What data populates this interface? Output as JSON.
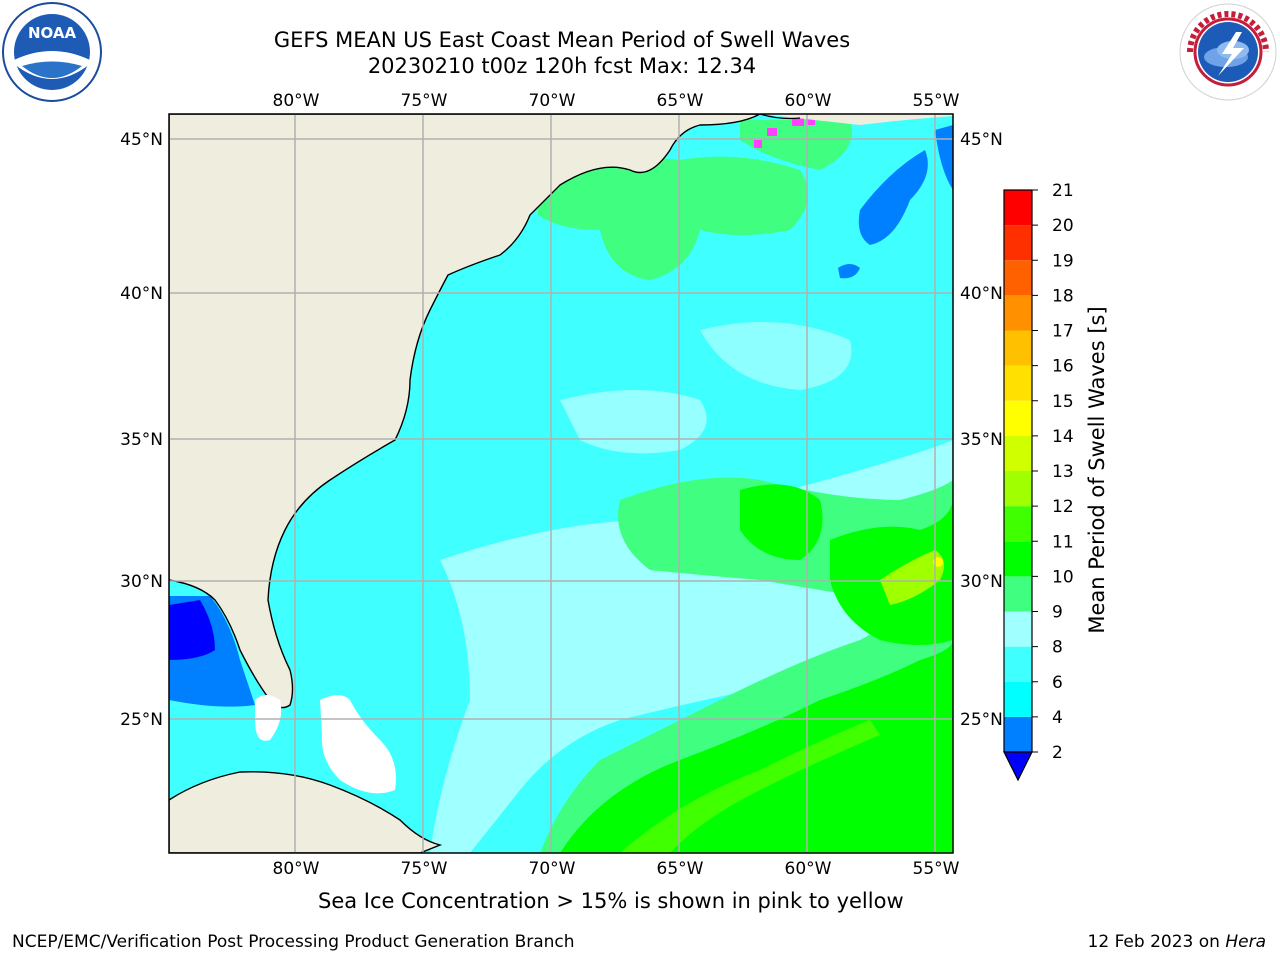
{
  "header": {
    "title_line1": "GEFS MEAN US East Coast Mean Period of Swell Waves",
    "title_line2": "20230210 t00z 120h fcst   Max: 12.34"
  },
  "logos": {
    "left": {
      "name": "noaa-logo",
      "text": "NOAA",
      "ring_text": "NATIONAL OCEANIC AND ATMOSPHERIC ADMINISTRATION · U.S. DEPARTMENT OF COMMERCE"
    },
    "right": {
      "name": "nws-logo",
      "ring_text": "NATIONAL WEATHER SERVICE"
    }
  },
  "map": {
    "lon_ticks": [
      "80°W",
      "75°W",
      "70°W",
      "65°W",
      "60°W",
      "55°W"
    ],
    "lat_ticks": [
      "45°N",
      "40°N",
      "35°N",
      "30°N",
      "25°N"
    ],
    "land_color": "#efedde",
    "grid_color": "#b0b0b0"
  },
  "colorbar": {
    "label": "Mean Period of Swell Waves [s]",
    "ticks": [
      "2",
      "4",
      "6",
      "8",
      "9",
      "10",
      "11",
      "12",
      "13",
      "14",
      "15",
      "16",
      "17",
      "18",
      "19",
      "20",
      "21"
    ],
    "colors": [
      "#0000ff",
      "#0080ff",
      "#00ffff",
      "#40ffff",
      "#a0ffff",
      "#40ff80",
      "#00ff00",
      "#40ff00",
      "#a0ff00",
      "#d0ff00",
      "#ffff00",
      "#ffe000",
      "#ffc000",
      "#ff9000",
      "#ff6000",
      "#ff3000",
      "#ff0000"
    ]
  },
  "footer": {
    "note": "Sea Ice Concentration > 15% is shown in pink to yellow",
    "left": "NCEP/EMC/Verification Post Processing Product Generation Branch",
    "date": "12 Feb 2023 on ",
    "host": "Hera"
  }
}
